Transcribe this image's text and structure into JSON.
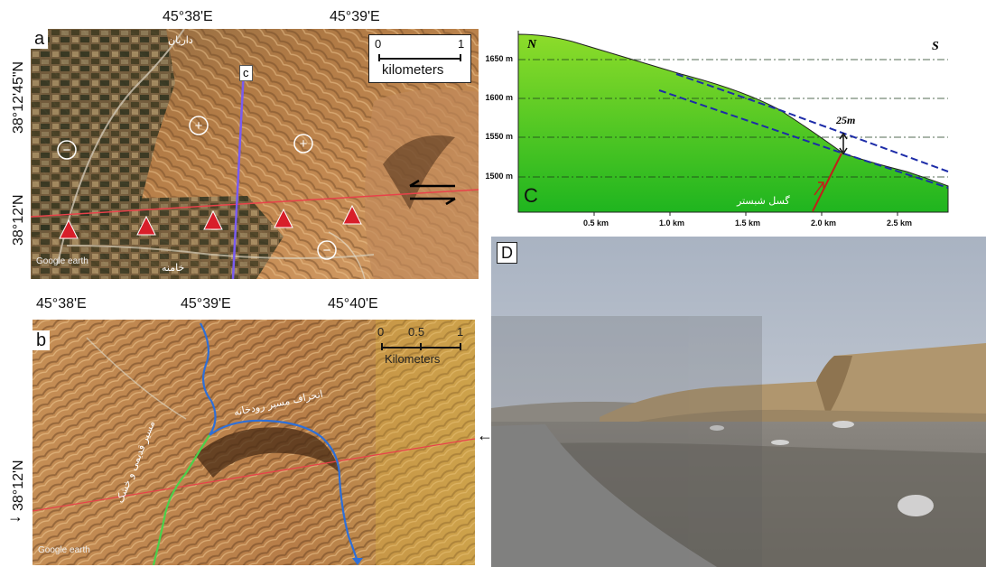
{
  "panel_a": {
    "letter": "a",
    "lon_labels": [
      "45°38'E",
      "45°39'E"
    ],
    "lat_labels": [
      "38°12'45\"N",
      "38°12'N"
    ],
    "scale": {
      "start": "0",
      "end": "1",
      "unit": "kilometers"
    },
    "profile_label": "c",
    "village_top": "داریان",
    "village_bottom": "خامنه",
    "watermark": "Google earth",
    "block_signs": [
      "+",
      "+",
      "−",
      "−"
    ]
  },
  "panel_b": {
    "letter": "b",
    "lon_labels": [
      "45°38'E",
      "45°39'E",
      "45°40'E"
    ],
    "lat_label": "38°12'N",
    "scale": {
      "start": "0",
      "mid": "0.5",
      "end": "1",
      "unit": "Kilometers"
    },
    "river_deflection_label": "انحراف مسیر رودخانه",
    "old_channel_label": "مسیر قدیمی و خشک",
    "watermark": "Google earth"
  },
  "panel_c": {
    "letter": "C",
    "north": "N",
    "south": "S",
    "offset_label": "25m",
    "fault_label": "گسل شبستر",
    "elevation_labels": [
      "1650 m",
      "1600 m",
      "1550 m",
      "1500 m"
    ],
    "distance_labels": [
      "0.5 km",
      "1.0 km",
      "1.5 km",
      "2.0 km",
      "2.5 km"
    ]
  },
  "panel_d": {
    "letter": "D"
  },
  "colors": {
    "fault_line": "#e8424a",
    "profile_line": "#7a5cf0",
    "river": "#2f6fd6",
    "old_channel": "#4bd14b",
    "profile_fill_top": "#8ddc2a",
    "profile_fill_bottom": "#1fb51f",
    "marker": "#d81e2a"
  }
}
